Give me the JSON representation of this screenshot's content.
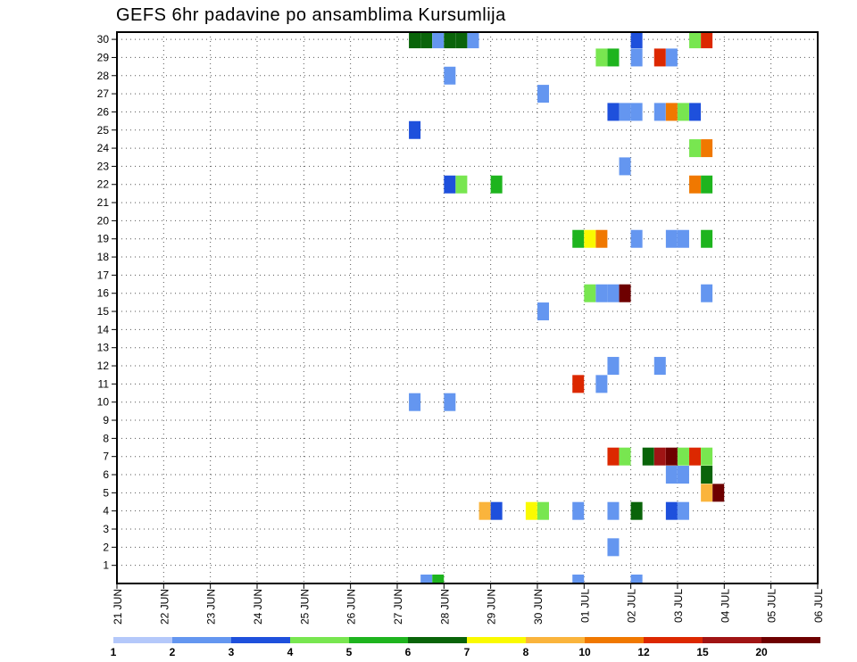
{
  "title": "GEFS 6hr padavine po ansamblima Kursumlija",
  "chart_data": {
    "type": "heatmap",
    "title": "GEFS 6hr padavine po ansamblima Kursumlija",
    "y_ticks": [
      "1",
      "2",
      "3",
      "4",
      "5",
      "6",
      "7",
      "8",
      "9",
      "10",
      "11",
      "12",
      "13",
      "14",
      "15",
      "16",
      "17",
      "18",
      "19",
      "20",
      "21",
      "22",
      "23",
      "24",
      "25",
      "26",
      "27",
      "28",
      "29",
      "30"
    ],
    "x_ticks": [
      "21 JUN",
      "22 JUN",
      "23 JUN",
      "24 JUN",
      "25 JUN",
      "26 JUN",
      "27 JUN",
      "28 JUN",
      "29 JUN",
      "30 JUN",
      "01 JUL",
      "02 JUL",
      "03 JUL",
      "04 JUL",
      "05 JUL",
      "06 JUL"
    ],
    "grid": true,
    "colorbar": {
      "levels": [
        "1",
        "2",
        "3",
        "4",
        "5",
        "6",
        "7",
        "8",
        "10",
        "12",
        "15",
        "20"
      ],
      "colors": [
        "#b4c8fa",
        "#6496f0",
        "#1e50dc",
        "#78e650",
        "#1eb41e",
        "#0a640a",
        "#fafa00",
        "#fab43c",
        "#f07800",
        "#dc2800",
        "#a01414",
        "#6e0000"
      ]
    },
    "series": [
      {
        "member": 30,
        "cells": [
          [
            27.25,
            5
          ],
          [
            27.5,
            5
          ],
          [
            27.75,
            1
          ],
          [
            28.0,
            5
          ],
          [
            28.25,
            5
          ],
          [
            28.5,
            1
          ],
          [
            32.0,
            2
          ],
          [
            33.25,
            3
          ],
          [
            33.5,
            9
          ]
        ]
      },
      {
        "member": 29,
        "cells": [
          [
            31.25,
            3
          ],
          [
            31.5,
            4
          ],
          [
            32.0,
            1
          ],
          [
            32.5,
            9
          ],
          [
            32.75,
            1
          ]
        ]
      },
      {
        "member": 28,
        "cells": [
          [
            28.0,
            1
          ]
        ]
      },
      {
        "member": 27,
        "cells": [
          [
            30.0,
            1
          ]
        ]
      },
      {
        "member": 26,
        "cells": [
          [
            31.5,
            2
          ],
          [
            31.75,
            1
          ],
          [
            32.0,
            1
          ],
          [
            32.5,
            1
          ],
          [
            32.75,
            8
          ],
          [
            33.0,
            3
          ],
          [
            33.25,
            2
          ]
        ]
      },
      {
        "member": 25,
        "cells": [
          [
            27.25,
            2
          ]
        ]
      },
      {
        "member": 24,
        "cells": [
          [
            33.25,
            3
          ],
          [
            33.5,
            8
          ]
        ]
      },
      {
        "member": 23,
        "cells": [
          [
            31.75,
            1
          ]
        ]
      },
      {
        "member": 22,
        "cells": [
          [
            28.0,
            2
          ],
          [
            28.25,
            3
          ],
          [
            29.0,
            4
          ],
          [
            33.25,
            8
          ],
          [
            33.5,
            4
          ]
        ]
      },
      {
        "member": 19,
        "cells": [
          [
            30.75,
            4
          ],
          [
            31.0,
            6
          ],
          [
            31.25,
            8
          ],
          [
            32.0,
            1
          ],
          [
            32.75,
            1
          ],
          [
            33.0,
            1
          ],
          [
            33.5,
            4
          ]
        ]
      },
      {
        "member": 16,
        "cells": [
          [
            31.0,
            3
          ],
          [
            31.25,
            1
          ],
          [
            31.5,
            1
          ],
          [
            31.75,
            11
          ],
          [
            33.5,
            1
          ]
        ]
      },
      {
        "member": 15,
        "cells": [
          [
            30.0,
            1
          ]
        ]
      },
      {
        "member": 12,
        "cells": [
          [
            31.5,
            1
          ],
          [
            32.5,
            1
          ]
        ]
      },
      {
        "member": 11,
        "cells": [
          [
            30.75,
            9
          ],
          [
            31.25,
            1
          ]
        ]
      },
      {
        "member": 10,
        "cells": [
          [
            27.25,
            1
          ],
          [
            28.0,
            1
          ]
        ]
      },
      {
        "member": 7,
        "cells": [
          [
            31.5,
            9
          ],
          [
            31.75,
            3
          ],
          [
            32.25,
            5
          ],
          [
            32.5,
            10
          ],
          [
            32.75,
            11
          ],
          [
            33.0,
            3
          ],
          [
            33.25,
            9
          ],
          [
            33.5,
            3
          ]
        ]
      },
      {
        "member": 6,
        "cells": [
          [
            32.75,
            1
          ],
          [
            33.0,
            1
          ],
          [
            33.5,
            5
          ]
        ]
      },
      {
        "member": 5,
        "cells": [
          [
            33.5,
            7
          ],
          [
            33.75,
            11
          ]
        ]
      },
      {
        "member": 4,
        "cells": [
          [
            28.75,
            7
          ],
          [
            29.0,
            2
          ],
          [
            29.75,
            6
          ],
          [
            30.0,
            3
          ],
          [
            30.75,
            1
          ],
          [
            31.5,
            1
          ],
          [
            32.0,
            5
          ],
          [
            32.75,
            2
          ],
          [
            33.0,
            1
          ]
        ]
      },
      {
        "member": 2,
        "cells": [
          [
            31.5,
            1
          ]
        ]
      },
      {
        "member": 0,
        "cells": [
          [
            27.5,
            1
          ],
          [
            27.75,
            4
          ],
          [
            30.75,
            1
          ],
          [
            32.0,
            1
          ]
        ]
      }
    ]
  }
}
